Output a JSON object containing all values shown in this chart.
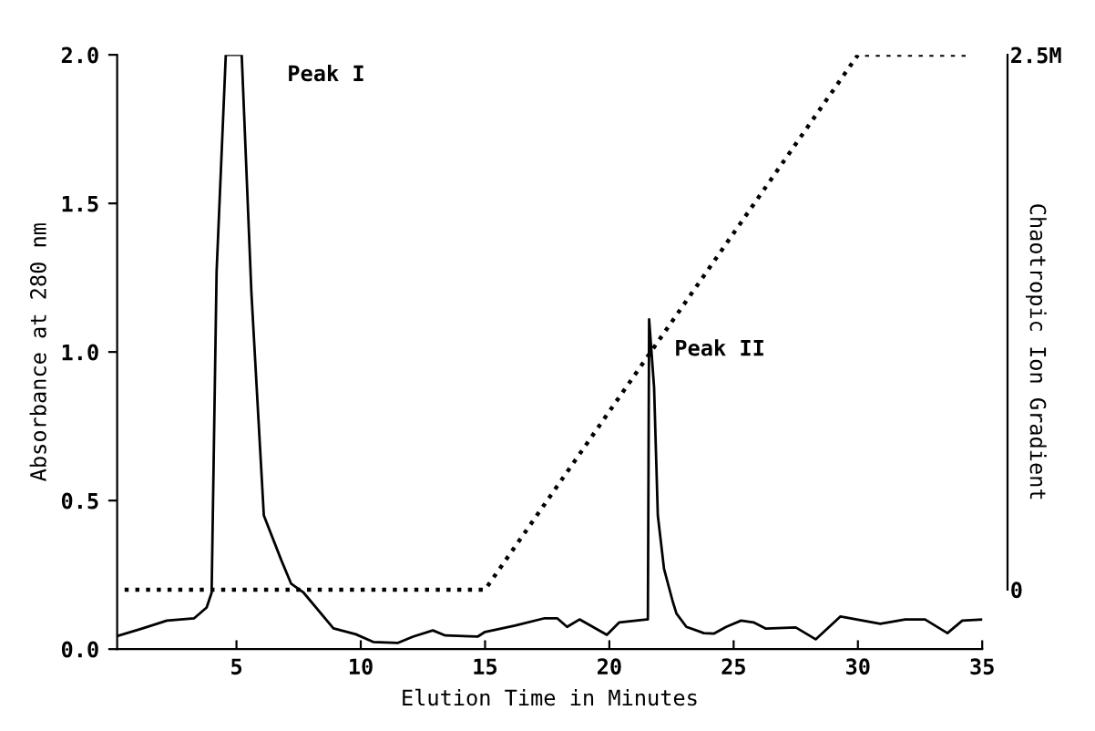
{
  "chart_data": {
    "type": "line",
    "xlabel": "Elution Time in Minutes",
    "ylabel": "Absorbance at 280 nm",
    "y2label": "Chaotropic Ion Gradient",
    "series": [
      {
        "color": "#000000",
        "line_style": "solid",
        "x": [
          0.2,
          1.2,
          2.2,
          3.3,
          3.8,
          4.0,
          4.2,
          4.57,
          5.21,
          5.6,
          6.1,
          6.8,
          7.2,
          7.7,
          8.9,
          9.8,
          10.5,
          11.5,
          12.1,
          12.9,
          13.4,
          14.7,
          15.0,
          16.2,
          17.4,
          17.9,
          18.3,
          18.8,
          19.9,
          20.4,
          21.5,
          21.55,
          21.6,
          21.8,
          21.95,
          22.2,
          22.55,
          22.7,
          23.1,
          23.8,
          24.2,
          24.7,
          25.3,
          25.8,
          26.3,
          27.5,
          28.3,
          29.3,
          30.2,
          30.9,
          31.9,
          32.7,
          33.6,
          34.2,
          35.0
        ],
        "values": [
          0.044,
          0.069,
          0.096,
          0.104,
          0.14,
          0.19,
          1.27,
          2.0,
          2.0,
          1.2,
          0.45,
          0.3,
          0.22,
          0.19,
          0.07,
          0.05,
          0.024,
          0.021,
          0.042,
          0.063,
          0.046,
          0.042,
          0.058,
          0.079,
          0.104,
          0.104,
          0.075,
          0.1,
          0.048,
          0.09,
          0.1,
          0.1,
          1.11,
          0.88,
          0.45,
          0.27,
          0.16,
          0.12,
          0.075,
          0.054,
          0.052,
          0.075,
          0.096,
          0.09,
          0.069,
          0.073,
          0.033,
          0.11,
          0.096,
          0.085,
          0.1,
          0.1,
          0.054,
          0.096,
          0.1
        ]
      },
      {
        "color": "#000000",
        "line_style": "dotted",
        "axis": "y2",
        "x": [
          0.5,
          15.0,
          30.0,
          34.5
        ],
        "values": [
          0,
          0,
          2.5,
          2.5
        ]
      }
    ],
    "xlim": [
      0.2,
      35
    ],
    "xticks": [
      5,
      10,
      15,
      20,
      25,
      30,
      35
    ],
    "ylim": [
      0,
      2.0
    ],
    "yticks": [
      {
        "value": 0,
        "label": "0.0"
      },
      0.5,
      {
        "value": 1,
        "label": "1.0"
      },
      1.5,
      {
        "value": 2,
        "label": "2.0"
      }
    ],
    "y2lim": [
      -0.278,
      2.5
    ],
    "y2ticks": [
      0,
      {
        "value": 2.5,
        "label": "2.5M"
      }
    ],
    "annotations": [
      {
        "text": "Peak I",
        "x": 5.21,
        "y": 2.0
      },
      {
        "text": "Peak II",
        "x": 21.6,
        "y": 1.11
      }
    ],
    "grid": false,
    "legend": false
  }
}
